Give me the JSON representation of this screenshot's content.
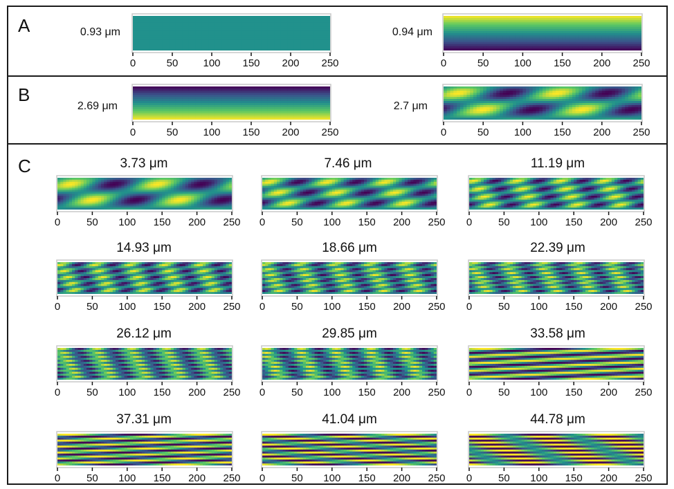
{
  "panels": [
    {
      "letter": "A"
    },
    {
      "letter": "B"
    },
    {
      "letter": "C"
    }
  ],
  "x_ticks": [
    0,
    50,
    100,
    150,
    200,
    250
  ],
  "colormap": "viridis",
  "chart_data": [
    {
      "panel": "A",
      "type": "heatmap",
      "label": "0.93 μm",
      "pattern": "uniform",
      "xlim": [
        0,
        250
      ]
    },
    {
      "panel": "A",
      "type": "heatmap",
      "label": "0.94 μm",
      "pattern": "vertical-gradient",
      "xlim": [
        0,
        250
      ]
    },
    {
      "panel": "B",
      "type": "heatmap",
      "label": "2.69 μm",
      "pattern": "vertical-gradient-inverse",
      "xlim": [
        0,
        250
      ]
    },
    {
      "panel": "B",
      "type": "heatmap",
      "label": "2.7 μm",
      "pattern": "hexagonal",
      "xlim": [
        0,
        250
      ]
    },
    {
      "panel": "C",
      "type": "heatmap",
      "label": "3.73 μm",
      "pattern": "hexagonal",
      "xlim": [
        0,
        250
      ]
    },
    {
      "panel": "C",
      "type": "heatmap",
      "label": "7.46 μm",
      "pattern": "hexagonal",
      "xlim": [
        0,
        250
      ]
    },
    {
      "panel": "C",
      "type": "heatmap",
      "label": "11.19 μm",
      "pattern": "hexagonal",
      "xlim": [
        0,
        250
      ]
    },
    {
      "panel": "C",
      "type": "heatmap",
      "label": "14.93 μm",
      "pattern": "hexagonal",
      "xlim": [
        0,
        250
      ]
    },
    {
      "panel": "C",
      "type": "heatmap",
      "label": "18.66 μm",
      "pattern": "hexagonal",
      "xlim": [
        0,
        250
      ]
    },
    {
      "panel": "C",
      "type": "heatmap",
      "label": "22.39 μm",
      "pattern": "hexagonal",
      "xlim": [
        0,
        250
      ]
    },
    {
      "panel": "C",
      "type": "heatmap",
      "label": "26.12 μm",
      "pattern": "hexagonal",
      "xlim": [
        0,
        250
      ]
    },
    {
      "panel": "C",
      "type": "heatmap",
      "label": "29.85 μm",
      "pattern": "hexagonal",
      "xlim": [
        0,
        250
      ]
    },
    {
      "panel": "C",
      "type": "heatmap",
      "label": "33.58 μm",
      "pattern": "diagonal-stripes",
      "xlim": [
        0,
        250
      ]
    },
    {
      "panel": "C",
      "type": "heatmap",
      "label": "37.31 μm",
      "pattern": "diagonal-stripes",
      "xlim": [
        0,
        250
      ]
    },
    {
      "panel": "C",
      "type": "heatmap",
      "label": "41.04 μm",
      "pattern": "diagonal-stripes",
      "xlim": [
        0,
        250
      ]
    },
    {
      "panel": "C",
      "type": "heatmap",
      "label": "44.78 μm",
      "pattern": "diagonal-stripes",
      "xlim": [
        0,
        250
      ]
    }
  ]
}
